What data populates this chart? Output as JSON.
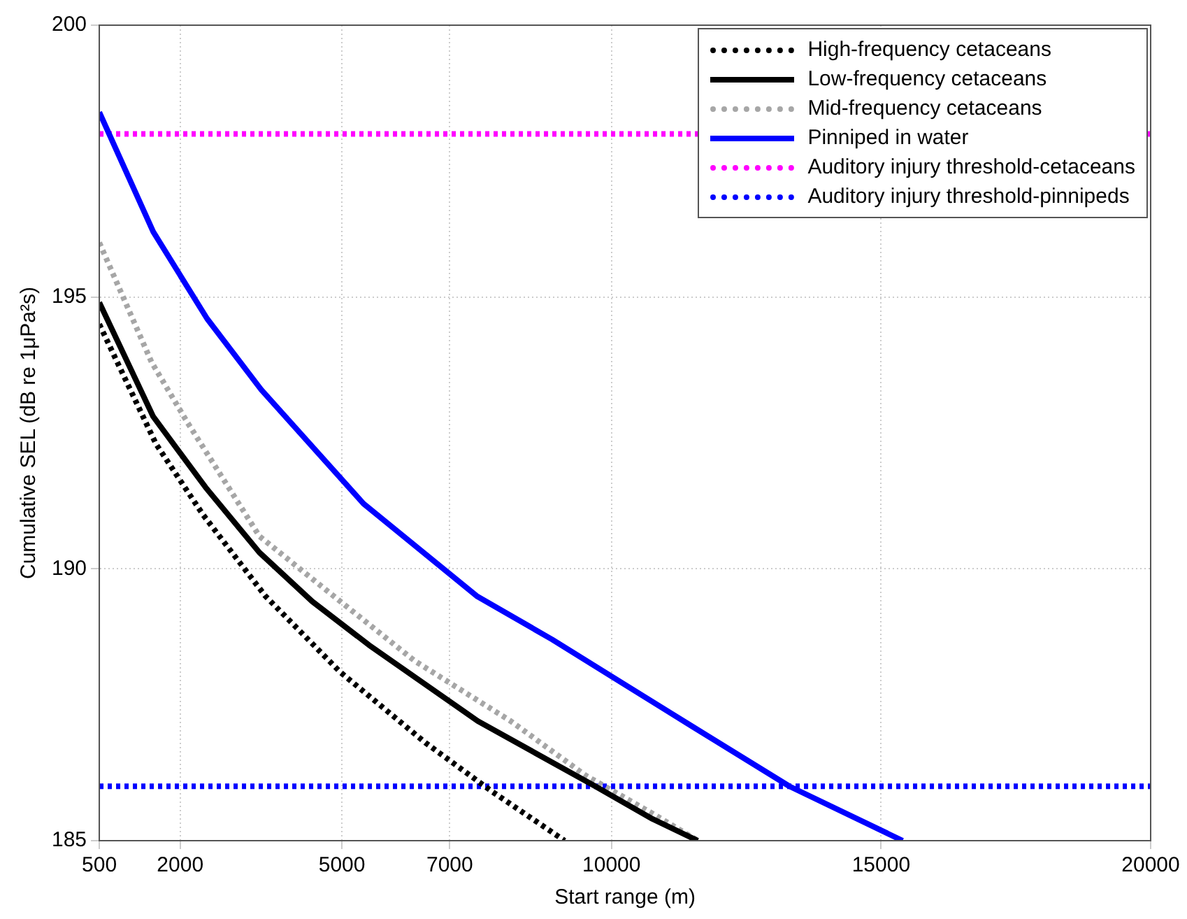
{
  "chart_data": {
    "type": "line",
    "xlabel": "Start range (m)",
    "ylabel": "Cumulative SEL (dB re 1μPa²s)",
    "xlim": [
      500,
      20000
    ],
    "xticks": [
      500,
      2000,
      5000,
      7000,
      10000,
      15000,
      20000
    ],
    "ylim": [
      185,
      200
    ],
    "yticks": [
      185,
      190,
      195,
      200
    ],
    "grid": true,
    "legend": "top right",
    "marker": "none",
    "series": [
      {
        "name": "High-frequency cetaceans",
        "color": "#000000",
        "line_style": "dotted",
        "x": [
          500,
          1550,
          2420,
          3580,
          4970,
          6550,
          7790,
          9130
        ],
        "values": [
          194.5,
          192.3,
          191.0,
          189.5,
          188.1,
          186.8,
          185.9,
          185.0
        ]
      },
      {
        "name": "Low-frequency cetaceans",
        "color": "#000000",
        "line_style": "solid",
        "x": [
          500,
          1500,
          2470,
          3470,
          4450,
          5500,
          7520,
          9700,
          10760,
          11600
        ],
        "values": [
          194.9,
          192.8,
          191.5,
          190.3,
          189.4,
          188.6,
          187.2,
          186.0,
          185.4,
          185.0
        ]
      },
      {
        "name": "Mid-frequency cetaceans",
        "color": "#a6a6a6",
        "line_style": "dotted",
        "x": [
          500,
          1470,
          2130,
          3470,
          4970,
          6360,
          8130,
          9520,
          10760,
          11600
        ],
        "values": [
          196.0,
          193.8,
          192.7,
          190.6,
          189.4,
          188.3,
          187.2,
          186.2,
          185.5,
          185.0
        ]
      },
      {
        "name": "Pinniped in water",
        "color": "#0000ff",
        "line_style": "solid",
        "x": [
          500,
          1500,
          2500,
          3500,
          5400,
          7500,
          8900,
          10200,
          11500,
          13300,
          15400
        ],
        "values": [
          198.4,
          196.2,
          194.6,
          193.3,
          191.2,
          189.5,
          188.7,
          187.9,
          187.1,
          186.0,
          185.0
        ]
      }
    ],
    "ref_lines": [
      {
        "axis": "y",
        "value": 198,
        "label": "Auditory injury threshold-cetaceans",
        "color": "#ff00ff",
        "line_style": "dotted"
      },
      {
        "axis": "y",
        "value": 186,
        "label": "Auditory injury threshold-pinnipeds",
        "color": "#0000ff",
        "line_style": "dotted"
      }
    ]
  }
}
